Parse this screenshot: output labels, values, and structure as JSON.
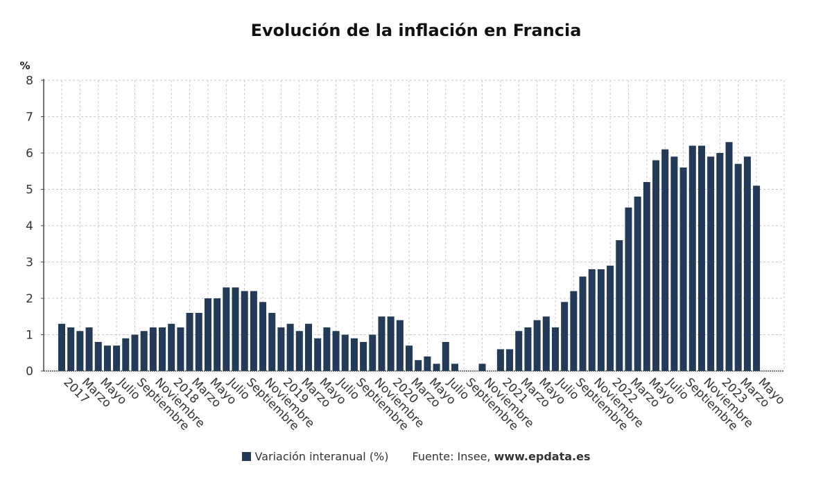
{
  "colors": {
    "bar": "#233a59",
    "grid": "#c8c8c8",
    "axis": "#444444"
  },
  "legend": {
    "series_label": "Variación interanual (%)",
    "source_label": "Fuente: Insee,",
    "source_site": "www.epdata.es"
  },
  "chart_data": {
    "type": "bar",
    "title": "Evolución de la inflación en Francia",
    "ylabel": "%",
    "xlabel": "",
    "ylim": [
      0,
      8
    ],
    "yticks": [
      0,
      1,
      2,
      3,
      4,
      5,
      6,
      7,
      8
    ],
    "grid": true,
    "categories": [
      "2017-01",
      "2017-02",
      "2017-03",
      "2017-04",
      "2017-05",
      "2017-06",
      "2017-07",
      "2017-08",
      "2017-09",
      "2017-10",
      "2017-11",
      "2017-12",
      "2018-01",
      "2018-02",
      "2018-03",
      "2018-04",
      "2018-05",
      "2018-06",
      "2018-07",
      "2018-08",
      "2018-09",
      "2018-10",
      "2018-11",
      "2018-12",
      "2019-01",
      "2019-02",
      "2019-03",
      "2019-04",
      "2019-05",
      "2019-06",
      "2019-07",
      "2019-08",
      "2019-09",
      "2019-10",
      "2019-11",
      "2019-12",
      "2020-01",
      "2020-02",
      "2020-03",
      "2020-04",
      "2020-05",
      "2020-06",
      "2020-07",
      "2020-08",
      "2020-09",
      "2020-10",
      "2020-11",
      "2020-12",
      "2021-01",
      "2021-02",
      "2021-03",
      "2021-04",
      "2021-05",
      "2021-06",
      "2021-07",
      "2021-08",
      "2021-09",
      "2021-10",
      "2021-11",
      "2021-12",
      "2022-01",
      "2022-02",
      "2022-03",
      "2022-04",
      "2022-05",
      "2022-06",
      "2022-07",
      "2022-08",
      "2022-09",
      "2022-10",
      "2022-11",
      "2022-12",
      "2023-01",
      "2023-02",
      "2023-03",
      "2023-04",
      "2023-05"
    ],
    "tick_labels": [
      "2017",
      "",
      "Marzo",
      "",
      "Mayo",
      "",
      "Julio",
      "",
      "Septiembre",
      "",
      "Noviembre",
      "",
      "2018",
      "",
      "Marzo",
      "",
      "Mayo",
      "",
      "Julio",
      "",
      "Septiembre",
      "",
      "Noviembre",
      "",
      "2019",
      "",
      "Marzo",
      "",
      "Mayo",
      "",
      "Julio",
      "",
      "Septiembre",
      "",
      "Noviembre",
      "",
      "2020",
      "",
      "Marzo",
      "",
      "Mayo",
      "",
      "Julio",
      "",
      "Septiembre",
      "",
      "Noviembre",
      "",
      "2021",
      "",
      "Marzo",
      "",
      "Mayo",
      "",
      "Julio",
      "",
      "Septiembre",
      "",
      "Noviembre",
      "",
      "2022",
      "",
      "Marzo",
      "",
      "Mayo",
      "",
      "Julio",
      "",
      "Septiembre",
      "",
      "Noviembre",
      "",
      "2023",
      "",
      "Marzo",
      "",
      "Mayo"
    ],
    "series": [
      {
        "name": "Variación interanual (%)",
        "values": [
          1.3,
          1.2,
          1.1,
          1.2,
          0.8,
          0.7,
          0.7,
          0.9,
          1.0,
          1.1,
          1.2,
          1.2,
          1.3,
          1.2,
          1.6,
          1.6,
          2.0,
          2.0,
          2.3,
          2.3,
          2.2,
          2.2,
          1.9,
          1.6,
          1.2,
          1.3,
          1.1,
          1.3,
          0.9,
          1.2,
          1.1,
          1.0,
          0.9,
          0.8,
          1.0,
          1.5,
          1.5,
          1.4,
          0.7,
          0.3,
          0.4,
          0.2,
          0.8,
          0.2,
          0.0,
          0.0,
          0.2,
          0.0,
          0.6,
          0.6,
          1.1,
          1.2,
          1.4,
          1.5,
          1.2,
          1.9,
          2.2,
          2.6,
          2.8,
          2.8,
          2.9,
          3.6,
          4.5,
          4.8,
          5.2,
          5.8,
          6.1,
          5.9,
          5.6,
          6.2,
          6.2,
          5.9,
          6.0,
          6.3,
          5.7,
          5.9,
          5.1
        ]
      }
    ]
  }
}
